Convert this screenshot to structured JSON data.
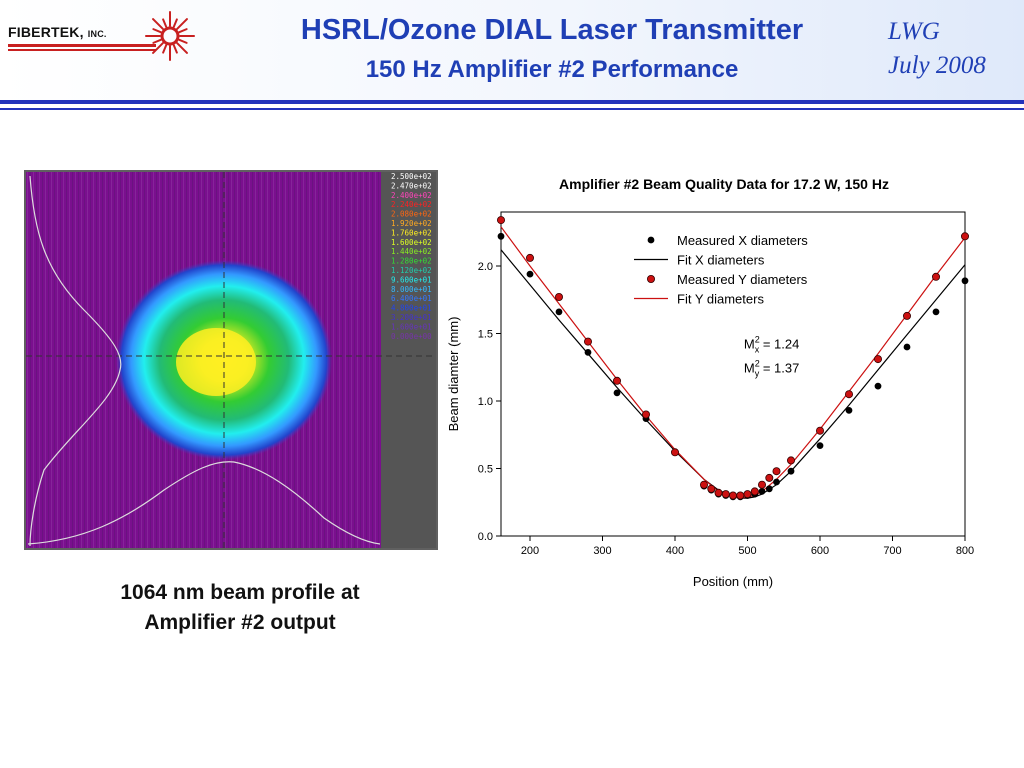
{
  "header": {
    "logo_text": "FIBERTEK,",
    "logo_suffix": "INC.",
    "title": "HSRL/Ozone DIAL Laser Transmitter",
    "subtitle": "150 Hz Amplifier #2 Performance",
    "author": "LWG",
    "date": "July 2008"
  },
  "colors": {
    "title": "#1f3fb5",
    "rule": "#2233bb",
    "logo_red": "#c82020",
    "profile_background": "#7a0f8e",
    "series_x": "#000000",
    "series_y": "#cc1111"
  },
  "beam_profile": {
    "colorbar_labels": [
      "2.500e+02",
      "2.470e+02",
      "2.400e+02",
      "2.240e+02",
      "2.080e+02",
      "1.920e+02",
      "1.760e+02",
      "1.600e+02",
      "1.440e+02",
      "1.280e+02",
      "1.120e+02",
      "9.600e+01",
      "8.000e+01",
      "6.400e+01",
      "4.800e+01",
      "3.200e+01",
      "1.600e+01",
      "0.000e+00"
    ],
    "colorbar_colors": [
      "#ffffff",
      "#ffffff",
      "#ff44bb",
      "#ff2222",
      "#ff6611",
      "#ffaa22",
      "#ffee22",
      "#ddff22",
      "#88ee22",
      "#33dd33",
      "#22ccaa",
      "#22eeee",
      "#33bbff",
      "#3377ff",
      "#2244ee",
      "#4433cc",
      "#6633bb",
      "#7733aa"
    ],
    "caption_line1": "1064 nm beam profile at",
    "caption_line2": "Amplifier #2 output"
  },
  "chart_data": {
    "type": "scatter",
    "title": "Amplifier #2 Beam Quality Data for 17.2 W, 150 Hz",
    "xlabel": "Position (mm)",
    "ylabel": "Beam diamter (mm)",
    "xlim": [
      160,
      800
    ],
    "ylim": [
      0,
      2.4
    ],
    "xticks": [
      200,
      300,
      400,
      500,
      600,
      700,
      800
    ],
    "yticks": [
      0.0,
      0.5,
      1.0,
      1.5,
      2.0
    ],
    "xtick_labels": [
      "200",
      "300",
      "400",
      "500",
      "600",
      "700",
      "800"
    ],
    "ytick_labels": [
      "0.0",
      "0.5",
      "1.0",
      "1.5",
      "2.0"
    ],
    "series": [
      {
        "name": "Measured X diameters",
        "kind": "points",
        "color": "#000000",
        "x": [
          160,
          200,
          240,
          280,
          320,
          360,
          440,
          450,
          460,
          470,
          480,
          490,
          500,
          510,
          520,
          530,
          540,
          560,
          600,
          640,
          680,
          720,
          760,
          800
        ],
        "y": [
          2.22,
          1.94,
          1.66,
          1.36,
          1.06,
          0.87,
          0.37,
          0.34,
          0.31,
          0.3,
          0.29,
          0.29,
          0.3,
          0.31,
          0.33,
          0.35,
          0.4,
          0.48,
          0.67,
          0.93,
          1.11,
          1.4,
          1.66,
          1.89
        ]
      },
      {
        "name": "Fit X diameters",
        "kind": "line",
        "color": "#000000",
        "x": [
          160,
          200,
          240,
          280,
          320,
          360,
          400,
          440,
          460,
          480,
          490,
          500,
          510,
          520,
          540,
          560,
          600,
          640,
          680,
          720,
          760,
          800
        ],
        "y": [
          2.12,
          1.86,
          1.6,
          1.35,
          1.1,
          0.86,
          0.63,
          0.42,
          0.34,
          0.29,
          0.28,
          0.28,
          0.29,
          0.31,
          0.38,
          0.48,
          0.72,
          0.97,
          1.23,
          1.49,
          1.75,
          2.01
        ]
      },
      {
        "name": "Measured Y diameters",
        "kind": "points",
        "color": "#cc1111",
        "x": [
          160,
          200,
          240,
          280,
          320,
          360,
          400,
          440,
          450,
          460,
          470,
          480,
          490,
          500,
          510,
          520,
          530,
          540,
          560,
          600,
          640,
          680,
          720,
          760,
          800
        ],
        "y": [
          2.34,
          2.06,
          1.77,
          1.44,
          1.15,
          0.9,
          0.62,
          0.38,
          0.35,
          0.32,
          0.31,
          0.3,
          0.3,
          0.31,
          0.33,
          0.38,
          0.43,
          0.48,
          0.56,
          0.78,
          1.05,
          1.31,
          1.63,
          1.92,
          2.22
        ]
      },
      {
        "name": "Fit Y diameters",
        "kind": "line",
        "color": "#cc1111",
        "x": [
          160,
          200,
          240,
          280,
          320,
          360,
          400,
          440,
          460,
          480,
          490,
          500,
          510,
          520,
          540,
          560,
          600,
          640,
          680,
          720,
          760,
          800
        ],
        "y": [
          2.29,
          2.0,
          1.72,
          1.44,
          1.16,
          0.89,
          0.64,
          0.42,
          0.33,
          0.29,
          0.28,
          0.29,
          0.3,
          0.33,
          0.42,
          0.53,
          0.79,
          1.07,
          1.35,
          1.64,
          1.93,
          2.21
        ]
      }
    ],
    "annotations": [
      {
        "base": "M",
        "sup": "2",
        "sub": "x",
        "rest": " = 1.24",
        "x": 495,
        "y": 1.39
      },
      {
        "base": "M",
        "sup": "2",
        "sub": "y",
        "rest": " = 1.37",
        "x": 495,
        "y": 1.21
      }
    ],
    "legend_position": "top-center",
    "grid": false
  }
}
